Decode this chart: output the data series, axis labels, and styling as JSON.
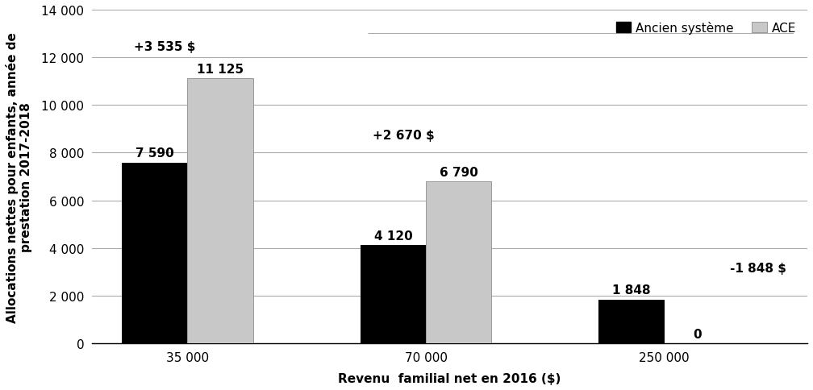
{
  "categories": [
    "35 000",
    "70 000",
    "250 000"
  ],
  "ancien_values": [
    7590,
    4120,
    1848
  ],
  "ace_values": [
    11125,
    6790,
    0
  ],
  "diff_labels": [
    "+3 535 $",
    "+2 670 $",
    "-1 848 $"
  ],
  "ancien_labels": [
    "7 590",
    "4 120",
    "1 848"
  ],
  "ace_labels": [
    "11 125",
    "6 790",
    "0"
  ],
  "bar_color_ancien": "#000000",
  "bar_color_ace": "#c8c8c8",
  "ylabel": "Allocations nettes pour enfants, année de\nprestation 2017-2018",
  "xlabel": "Revenu  familial net en 2016 ($)",
  "ylim": [
    0,
    14000
  ],
  "yticks": [
    0,
    2000,
    4000,
    6000,
    8000,
    10000,
    12000,
    14000
  ],
  "ytick_labels": [
    "0",
    "2 000",
    "4 000",
    "6 000",
    "8 000",
    "10 000",
    "12 000",
    "14 000"
  ],
  "legend_ancien": "Ancien système",
  "legend_ace": "ACE",
  "bar_width": 0.55,
  "group_positions": [
    1.0,
    3.0,
    5.0
  ],
  "background_color": "#ffffff",
  "grid_color": "#aaaaaa",
  "font_size_ticks": 11,
  "font_size_labels": 11,
  "font_size_bar_labels": 11,
  "font_size_diff": 11,
  "font_size_legend": 11
}
